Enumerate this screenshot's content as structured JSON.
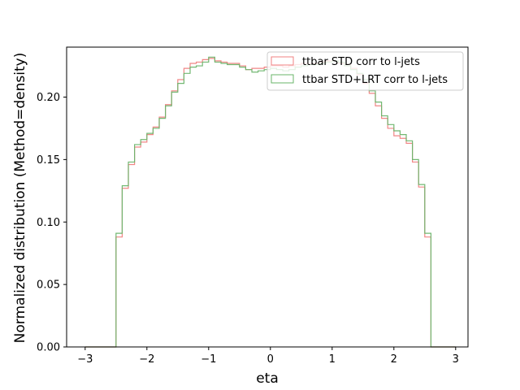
{
  "chart_data": {
    "type": "histogram-step",
    "xlabel": "eta",
    "ylabel": "Normalized distribution (Method=density)",
    "xlim": [
      -3.3,
      3.2
    ],
    "ylim": [
      0.0,
      0.24
    ],
    "xticks": [
      -3,
      -2,
      -1,
      0,
      1,
      2,
      3
    ],
    "xtick_labels": [
      "−3",
      "−2",
      "−1",
      "0",
      "1",
      "2",
      "3"
    ],
    "yticks": [
      0.0,
      0.05,
      0.1,
      0.15,
      0.2
    ],
    "ytick_labels": [
      "0.00",
      "0.05",
      "0.10",
      "0.15",
      "0.20"
    ],
    "grid": false,
    "legend_position": "top-right",
    "bin_edges": [
      -3.0,
      -2.9,
      -2.8,
      -2.7,
      -2.6,
      -2.5,
      -2.4,
      -2.3,
      -2.2,
      -2.1,
      -2.0,
      -1.9,
      -1.8,
      -1.7,
      -1.6,
      -1.5,
      -1.4,
      -1.3,
      -1.2,
      -1.1,
      -1.0,
      -0.9,
      -0.8,
      -0.7,
      -0.6,
      -0.5,
      -0.4,
      -0.3,
      -0.2,
      -0.1,
      0.0,
      0.1,
      0.2,
      0.3,
      0.4,
      0.5,
      0.6,
      0.7,
      0.8,
      0.9,
      1.0,
      1.1,
      1.2,
      1.3,
      1.4,
      1.5,
      1.6,
      1.7,
      1.8,
      1.9,
      2.0,
      2.1,
      2.2,
      2.3,
      2.4,
      2.5,
      2.6,
      2.7,
      2.8,
      2.9,
      3.0
    ],
    "series": [
      {
        "name": "ttbar STD corr to l-jets",
        "color": "#f08080",
        "values": [
          0,
          0,
          0,
          0,
          0,
          0.088,
          0.127,
          0.146,
          0.16,
          0.164,
          0.17,
          0.176,
          0.184,
          0.194,
          0.205,
          0.214,
          0.223,
          0.227,
          0.228,
          0.23,
          0.231,
          0.229,
          0.228,
          0.227,
          0.227,
          0.225,
          0.222,
          0.223,
          0.223,
          0.224,
          0.225,
          0.225,
          0.224,
          0.225,
          0.226,
          0.227,
          0.227,
          0.227,
          0.228,
          0.229,
          0.229,
          0.227,
          0.226,
          0.223,
          0.218,
          0.211,
          0.203,
          0.193,
          0.183,
          0.175,
          0.169,
          0.167,
          0.163,
          0.148,
          0.128,
          0.088,
          0,
          0,
          0,
          0
        ]
      },
      {
        "name": "ttbar STD+LRT corr to l-jets",
        "color": "#6ab46a",
        "values": [
          0,
          0,
          0,
          0,
          0,
          0.091,
          0.129,
          0.148,
          0.162,
          0.166,
          0.171,
          0.175,
          0.183,
          0.193,
          0.204,
          0.211,
          0.219,
          0.224,
          0.225,
          0.228,
          0.232,
          0.228,
          0.227,
          0.226,
          0.226,
          0.224,
          0.222,
          0.22,
          0.221,
          0.222,
          0.223,
          0.222,
          0.221,
          0.222,
          0.224,
          0.225,
          0.226,
          0.226,
          0.227,
          0.228,
          0.229,
          0.228,
          0.225,
          0.222,
          0.219,
          0.214,
          0.205,
          0.196,
          0.185,
          0.178,
          0.173,
          0.17,
          0.165,
          0.15,
          0.13,
          0.091,
          0,
          0,
          0,
          0
        ]
      }
    ]
  }
}
